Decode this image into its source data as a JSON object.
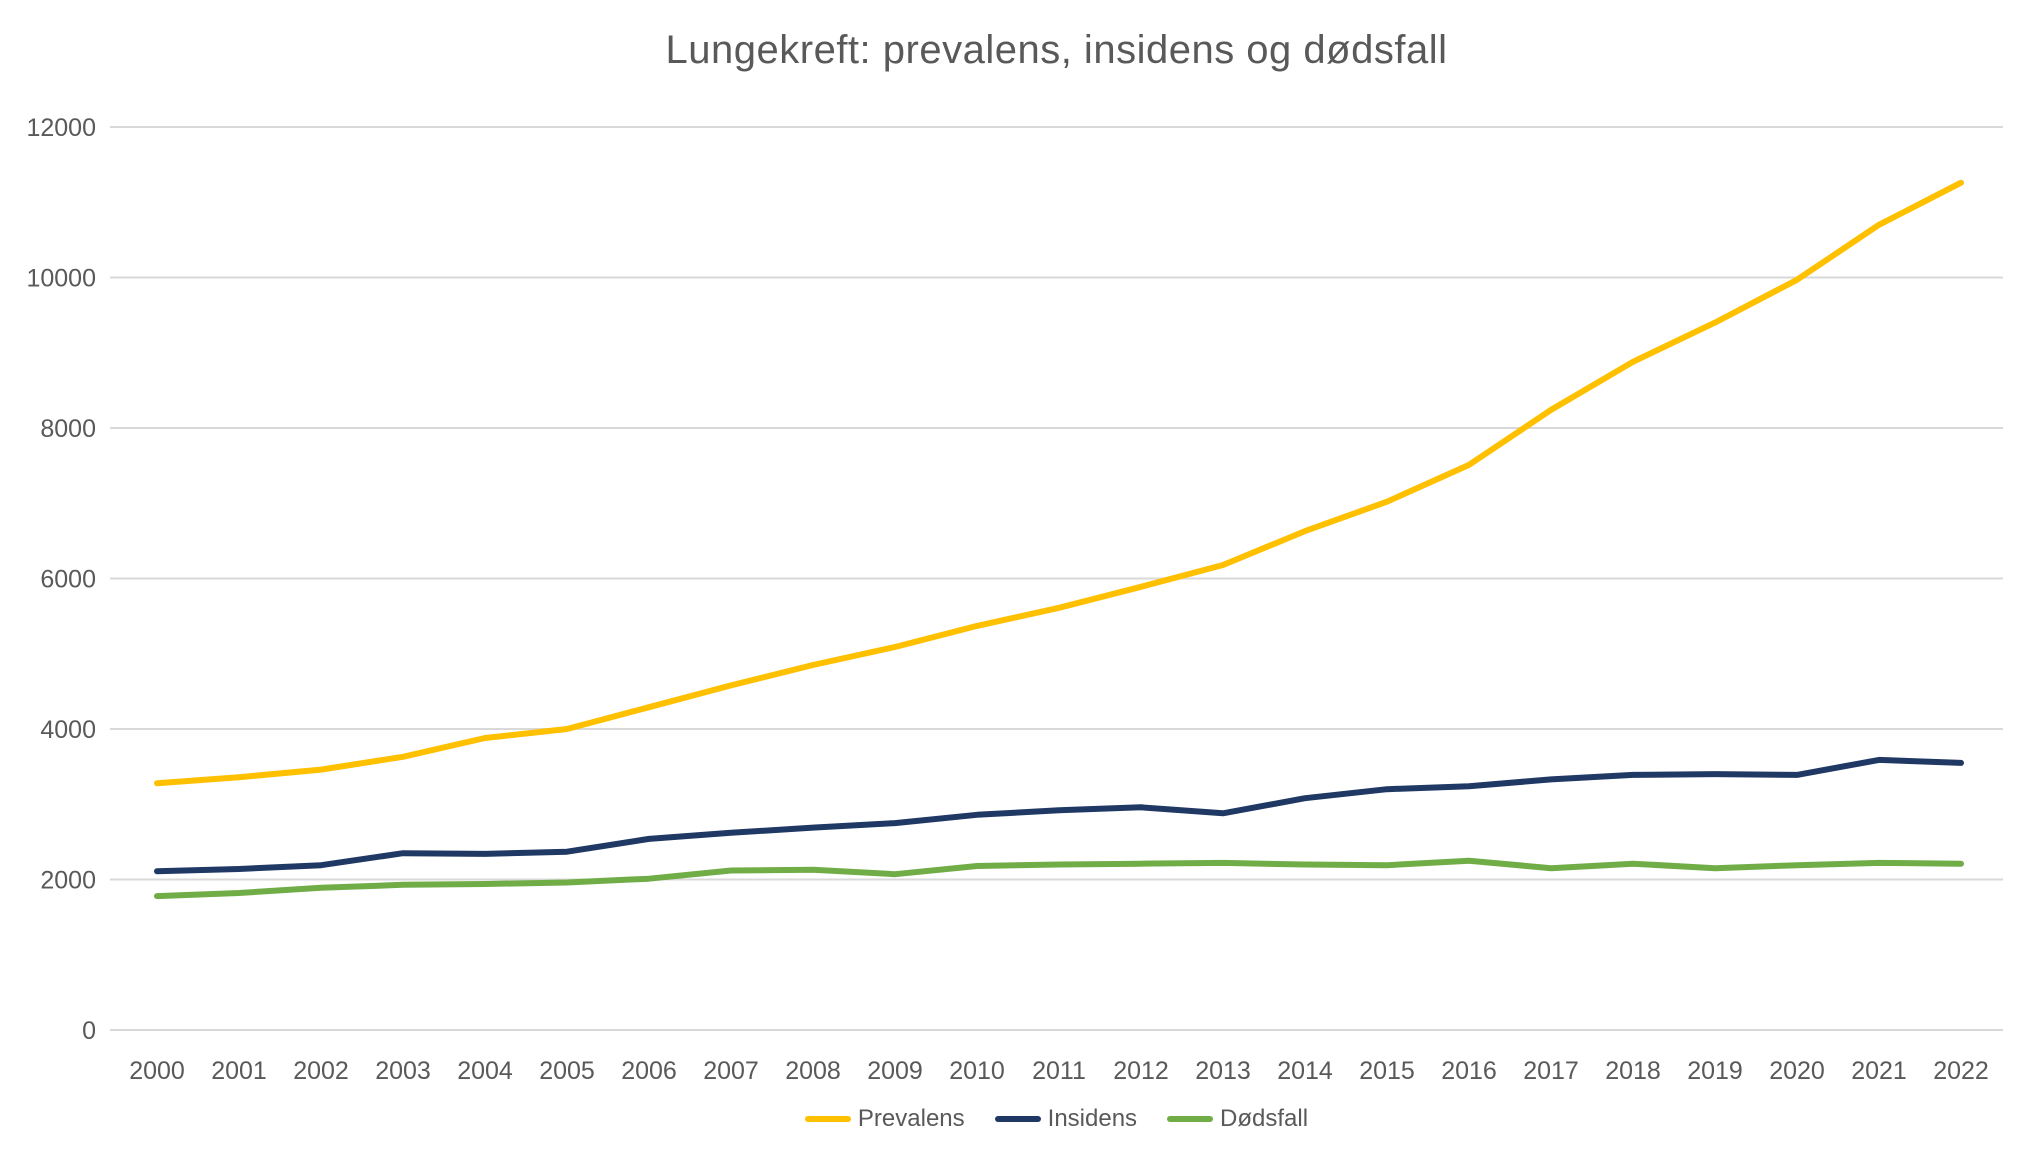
{
  "chart_data": {
    "type": "line",
    "title": "Lungekreft: prevalens, insidens og dødsfall",
    "x": [
      2000,
      2001,
      2002,
      2003,
      2004,
      2005,
      2006,
      2007,
      2008,
      2009,
      2010,
      2011,
      2012,
      2013,
      2014,
      2015,
      2016,
      2017,
      2018,
      2019,
      2020,
      2021,
      2022
    ],
    "series": [
      {
        "name": "Prevalens",
        "color": "#FFC000",
        "values": [
          3280,
          3360,
          3460,
          3630,
          3880,
          4000,
          4290,
          4580,
          4850,
          5090,
          5370,
          5610,
          5890,
          6180,
          6630,
          7020,
          7510,
          8240,
          8880,
          9400,
          9970,
          10700,
          11260
        ]
      },
      {
        "name": "Insidens",
        "color": "#1F3864",
        "values": [
          2110,
          2140,
          2190,
          2350,
          2340,
          2370,
          2540,
          2620,
          2690,
          2750,
          2860,
          2920,
          2960,
          2880,
          3080,
          3200,
          3240,
          3330,
          3390,
          3400,
          3390,
          3590,
          3550
        ]
      },
      {
        "name": "Dødsfall",
        "color": "#70AD47",
        "values": [
          1780,
          1820,
          1890,
          1930,
          1940,
          1960,
          2010,
          2120,
          2130,
          2070,
          2180,
          2200,
          2210,
          2220,
          2200,
          2190,
          2250,
          2150,
          2210,
          2150,
          2190,
          2220,
          2210
        ]
      }
    ],
    "ylim": [
      0,
      12000
    ],
    "yticks": [
      0,
      2000,
      4000,
      6000,
      8000,
      10000,
      12000
    ],
    "xlabel": "",
    "ylabel": "",
    "grid": "horizontal",
    "grid_color": "#D9D9D9",
    "text_color": "#595959",
    "legend_position": "bottom"
  }
}
